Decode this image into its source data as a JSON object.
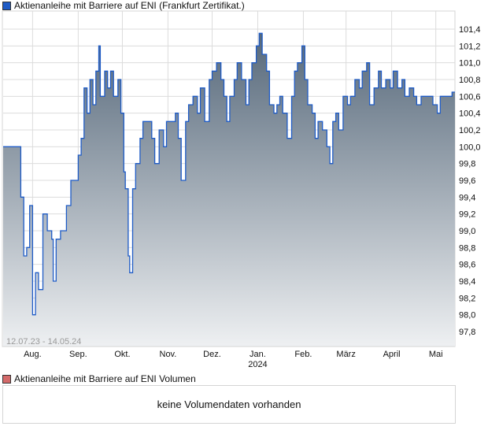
{
  "legend_main": "Aktienanleihe mit Barriere auf ENI  (Frankfurt Zertifikat.)",
  "legend_volume": "Aktienanleihe mit Barriere auf ENI  Volumen",
  "no_volume_text": "keine Volumendaten vorhanden",
  "colors": {
    "line": "#1e5bc6",
    "fill_top": "#56687a",
    "fill_bottom": "#eef0f2",
    "legend_main": "#1e5bc6",
    "legend_volume": "#d46a6a"
  },
  "chart_data": {
    "type": "area",
    "title": "Aktienanleihe mit Barriere auf ENI (Frankfurt Zertifikat.)",
    "date_range": "12.07.23 - 14.05.24",
    "xlabel": "",
    "ylabel": "",
    "x_unit": "days since 12.07.23",
    "xlim": [
      0,
      307
    ],
    "ylim": [
      97.6,
      101.6
    ],
    "y_ticks": [
      "97,8",
      "98,0",
      "98,2",
      "98,4",
      "98,6",
      "98,8",
      "99,0",
      "99,2",
      "99,4",
      "99,6",
      "99,8",
      "100,0",
      "100,2",
      "100,4",
      "100,6",
      "100,8",
      "101,0",
      "101,2",
      "101,4"
    ],
    "y_tick_values": [
      97.8,
      98.0,
      98.2,
      98.4,
      98.6,
      98.8,
      99.0,
      99.2,
      99.4,
      99.6,
      99.8,
      100.0,
      100.2,
      100.4,
      100.6,
      100.8,
      101.0,
      101.2,
      101.4
    ],
    "x_ticks": [
      {
        "label": "Aug.",
        "day": 20
      },
      {
        "label": "Sep.",
        "day": 51
      },
      {
        "label": "Okt.",
        "day": 81
      },
      {
        "label": "Nov.",
        "day": 112
      },
      {
        "label": "Dez.",
        "day": 142
      },
      {
        "label": "Jan.",
        "sub": "2024",
        "day": 173
      },
      {
        "label": "Feb.",
        "day": 204
      },
      {
        "label": "März",
        "day": 233
      },
      {
        "label": "April",
        "day": 264
      },
      {
        "label": "Mai",
        "day": 294
      }
    ],
    "grid": true,
    "x": [
      0,
      11,
      12,
      14,
      16,
      18,
      20,
      22,
      24,
      26,
      27,
      30,
      33,
      34,
      36,
      39,
      41,
      43,
      46,
      49,
      51,
      53,
      55,
      57,
      59,
      61,
      63,
      65,
      66,
      69,
      71,
      73,
      75,
      78,
      80,
      82,
      83,
      85,
      86,
      88,
      90,
      93,
      95,
      98,
      101,
      103,
      106,
      109,
      111,
      114,
      117,
      119,
      121,
      124,
      126,
      129,
      132,
      134,
      137,
      140,
      142,
      145,
      148,
      150,
      152,
      154,
      157,
      159,
      162,
      165,
      167,
      169,
      172,
      174,
      176,
      179,
      181,
      184,
      186,
      188,
      190,
      193,
      196,
      198,
      200,
      203,
      205,
      207,
      210,
      212,
      214,
      217,
      220,
      222,
      224,
      226,
      228,
      231,
      234,
      236,
      239,
      242,
      244,
      247,
      249,
      252,
      255,
      257,
      260,
      263,
      265,
      268,
      271,
      273,
      276,
      279,
      281,
      284,
      287,
      289,
      292,
      295,
      297,
      300,
      303,
      305,
      307
    ],
    "values": [
      100.0,
      100.0,
      99.4,
      98.7,
      98.8,
      99.3,
      98.0,
      98.5,
      98.3,
      98.3,
      99.2,
      99.0,
      98.9,
      98.4,
      98.9,
      99.0,
      99.0,
      99.3,
      99.6,
      99.6,
      99.9,
      100.1,
      100.7,
      100.4,
      100.8,
      100.5,
      100.9,
      101.2,
      100.6,
      100.9,
      100.7,
      100.9,
      100.6,
      100.8,
      100.4,
      99.7,
      99.5,
      98.7,
      98.5,
      99.5,
      99.8,
      100.1,
      100.3,
      100.3,
      100.1,
      99.8,
      100.2,
      100.0,
      100.3,
      100.3,
      100.4,
      100.1,
      99.6,
      100.3,
      100.5,
      100.6,
      100.4,
      100.7,
      100.3,
      100.8,
      100.9,
      101.0,
      100.8,
      100.6,
      100.3,
      100.6,
      100.8,
      101.0,
      100.8,
      100.5,
      100.8,
      101.0,
      101.2,
      101.35,
      101.1,
      100.9,
      100.5,
      100.4,
      100.5,
      100.6,
      100.4,
      100.1,
      100.6,
      100.9,
      101.0,
      101.2,
      100.8,
      100.5,
      100.4,
      100.1,
      100.3,
      100.2,
      100.0,
      99.8,
      100.3,
      100.4,
      100.2,
      100.6,
      100.5,
      100.6,
      100.8,
      100.7,
      100.9,
      101.0,
      100.5,
      100.7,
      100.9,
      100.7,
      100.8,
      100.7,
      100.9,
      100.7,
      100.8,
      100.6,
      100.7,
      100.6,
      100.5,
      100.6,
      100.6,
      100.6,
      100.5,
      100.4,
      100.6,
      100.6,
      100.6,
      100.65,
      100.65
    ]
  }
}
